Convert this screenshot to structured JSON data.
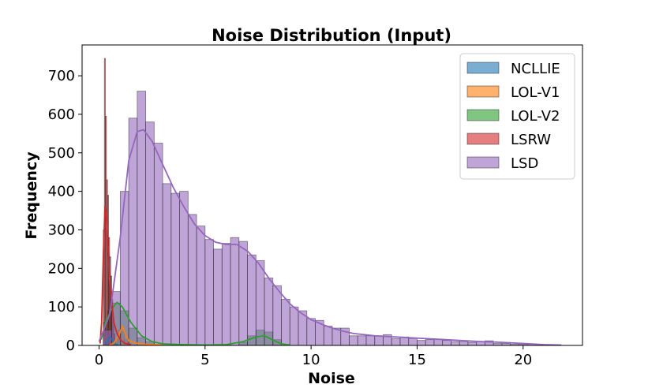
{
  "chart_data": {
    "type": "histogram",
    "title": "Noise Distribution (Input)",
    "xlabel": "Noise",
    "ylabel": "Frequency",
    "xlim": [
      -0.8,
      22.8
    ],
    "ylim": [
      0,
      780
    ],
    "xticks": [
      0,
      5,
      10,
      15,
      20
    ],
    "yticks": [
      0,
      100,
      200,
      300,
      400,
      500,
      600,
      700
    ],
    "legend_position": "top-right",
    "series": [
      {
        "name": "NCLLIE",
        "color": "#1f77b4",
        "bins": [
          [
            0.3,
            0.35,
            15
          ],
          [
            0.35,
            0.4,
            40
          ],
          [
            0.4,
            0.45,
            90
          ],
          [
            0.45,
            0.5,
            170
          ],
          [
            0.5,
            0.55,
            230
          ],
          [
            0.55,
            0.6,
            180
          ],
          [
            0.6,
            0.65,
            120
          ],
          [
            0.65,
            0.7,
            60
          ],
          [
            0.7,
            0.75,
            30
          ],
          [
            0.75,
            0.8,
            10
          ]
        ],
        "kde": [
          [
            0.3,
            3
          ],
          [
            0.4,
            12
          ],
          [
            0.5,
            22
          ],
          [
            0.6,
            18
          ],
          [
            0.7,
            8
          ],
          [
            0.8,
            3
          ],
          [
            0.9,
            1
          ]
        ]
      },
      {
        "name": "LOL-V1",
        "color": "#ff7f0e",
        "bins": [
          [
            0.6,
            0.75,
            5
          ],
          [
            0.75,
            0.9,
            15
          ],
          [
            0.9,
            1.05,
            40
          ],
          [
            1.05,
            1.2,
            35
          ],
          [
            1.2,
            1.35,
            15
          ],
          [
            1.35,
            1.5,
            5
          ]
        ],
        "kde": [
          [
            0.5,
            1
          ],
          [
            0.7,
            6
          ],
          [
            0.9,
            22
          ],
          [
            1.1,
            50
          ],
          [
            1.25,
            28
          ],
          [
            1.4,
            12
          ],
          [
            1.7,
            6
          ],
          [
            2.2,
            3
          ],
          [
            3.0,
            1
          ]
        ]
      },
      {
        "name": "LOL-V2",
        "color": "#2ca02c",
        "bins": [
          [
            0.2,
            0.6,
            60
          ],
          [
            0.6,
            1.0,
            110
          ],
          [
            1.0,
            1.4,
            90
          ],
          [
            1.4,
            1.8,
            45
          ],
          [
            1.8,
            2.2,
            20
          ],
          [
            2.2,
            2.6,
            10
          ],
          [
            6.6,
            7.0,
            8
          ],
          [
            7.0,
            7.4,
            25
          ],
          [
            7.4,
            7.8,
            40
          ],
          [
            7.8,
            8.2,
            35
          ],
          [
            8.2,
            8.6,
            15
          ]
        ],
        "kde": [
          [
            0.1,
            15
          ],
          [
            0.3,
            60
          ],
          [
            0.6,
            95
          ],
          [
            0.85,
            112
          ],
          [
            1.1,
            100
          ],
          [
            1.5,
            60
          ],
          [
            2.0,
            25
          ],
          [
            2.5,
            10
          ],
          [
            3.0,
            4
          ],
          [
            4.0,
            2
          ],
          [
            5.0,
            1
          ],
          [
            6.0,
            2
          ],
          [
            6.8,
            10
          ],
          [
            7.4,
            22
          ],
          [
            7.8,
            25
          ],
          [
            8.2,
            14
          ],
          [
            8.6,
            4
          ],
          [
            9.0,
            1
          ]
        ]
      },
      {
        "name": "LSRW",
        "color": "#d62728",
        "bins": [
          [
            0.2,
            0.25,
            300
          ],
          [
            0.25,
            0.3,
            745
          ],
          [
            0.3,
            0.35,
            595
          ],
          [
            0.35,
            0.4,
            430
          ],
          [
            0.4,
            0.45,
            390
          ],
          [
            0.45,
            0.5,
            280
          ],
          [
            0.5,
            0.55,
            180
          ],
          [
            0.55,
            0.6,
            120
          ],
          [
            0.6,
            0.65,
            80
          ],
          [
            0.65,
            0.7,
            50
          ],
          [
            0.7,
            0.75,
            30
          ]
        ],
        "kde": [
          [
            0.05,
            5
          ],
          [
            0.12,
            60
          ],
          [
            0.2,
            230
          ],
          [
            0.28,
            360
          ],
          [
            0.35,
            330
          ],
          [
            0.45,
            230
          ],
          [
            0.55,
            140
          ],
          [
            0.7,
            60
          ],
          [
            0.85,
            30
          ],
          [
            1.0,
            15
          ],
          [
            1.2,
            6
          ],
          [
            1.5,
            2
          ]
        ]
      },
      {
        "name": "LSD",
        "color": "#9467bd",
        "bins": [
          [
            0.2,
            0.6,
            40
          ],
          [
            0.6,
            1.0,
            140
          ],
          [
            1.0,
            1.4,
            400
          ],
          [
            1.4,
            1.8,
            590
          ],
          [
            1.8,
            2.2,
            660
          ],
          [
            2.2,
            2.6,
            580
          ],
          [
            2.6,
            3.0,
            525
          ],
          [
            3.0,
            3.4,
            420
          ],
          [
            3.4,
            3.8,
            395
          ],
          [
            3.8,
            4.2,
            400
          ],
          [
            4.2,
            4.6,
            340
          ],
          [
            4.6,
            5.0,
            310
          ],
          [
            5.0,
            5.4,
            275
          ],
          [
            5.4,
            5.8,
            250
          ],
          [
            5.8,
            6.2,
            265
          ],
          [
            6.2,
            6.6,
            280
          ],
          [
            6.6,
            7.0,
            270
          ],
          [
            7.0,
            7.4,
            235
          ],
          [
            7.4,
            7.8,
            220
          ],
          [
            7.8,
            8.2,
            175
          ],
          [
            8.2,
            8.6,
            155
          ],
          [
            8.6,
            9.0,
            120
          ],
          [
            9.0,
            9.4,
            100
          ],
          [
            9.4,
            9.8,
            90
          ],
          [
            9.8,
            10.2,
            70
          ],
          [
            10.2,
            10.6,
            65
          ],
          [
            10.6,
            11.0,
            50
          ],
          [
            11.0,
            11.4,
            45
          ],
          [
            11.4,
            11.8,
            45
          ],
          [
            11.8,
            12.2,
            25
          ],
          [
            12.2,
            12.6,
            25
          ],
          [
            12.6,
            13.0,
            25
          ],
          [
            13.0,
            13.4,
            25
          ],
          [
            13.4,
            13.8,
            28
          ],
          [
            13.8,
            14.2,
            18
          ],
          [
            14.2,
            14.6,
            22
          ],
          [
            14.6,
            15.0,
            18
          ],
          [
            15.0,
            15.4,
            13
          ],
          [
            15.4,
            15.8,
            15
          ],
          [
            15.8,
            16.2,
            16
          ],
          [
            16.2,
            16.6,
            13
          ],
          [
            16.6,
            17.0,
            10
          ],
          [
            17.0,
            17.4,
            10
          ],
          [
            17.4,
            17.8,
            8
          ],
          [
            17.8,
            18.2,
            10
          ],
          [
            18.2,
            18.6,
            12
          ],
          [
            18.6,
            19.0,
            5
          ],
          [
            19.0,
            19.4,
            5
          ],
          [
            19.4,
            19.8,
            3
          ],
          [
            19.8,
            20.2,
            3
          ],
          [
            20.2,
            20.6,
            3
          ],
          [
            20.6,
            21.0,
            2
          ],
          [
            21.0,
            21.4,
            2
          ],
          [
            21.4,
            21.8,
            1
          ]
        ],
        "kde": [
          [
            0.0,
            10
          ],
          [
            0.5,
            80
          ],
          [
            1.0,
            280
          ],
          [
            1.4,
            480
          ],
          [
            1.8,
            555
          ],
          [
            2.1,
            560
          ],
          [
            2.5,
            530
          ],
          [
            3.0,
            470
          ],
          [
            3.5,
            410
          ],
          [
            4.0,
            360
          ],
          [
            4.5,
            315
          ],
          [
            5.0,
            285
          ],
          [
            5.5,
            268
          ],
          [
            6.0,
            262
          ],
          [
            6.5,
            262
          ],
          [
            7.0,
            245
          ],
          [
            7.5,
            215
          ],
          [
            8.0,
            175
          ],
          [
            8.5,
            140
          ],
          [
            9.0,
            108
          ],
          [
            9.5,
            85
          ],
          [
            10.0,
            67
          ],
          [
            10.5,
            55
          ],
          [
            11.0,
            45
          ],
          [
            11.5,
            37
          ],
          [
            12.0,
            31
          ],
          [
            13.0,
            25
          ],
          [
            14.0,
            22
          ],
          [
            15.0,
            19
          ],
          [
            16.0,
            16
          ],
          [
            17.0,
            13
          ],
          [
            18.0,
            10
          ],
          [
            19.0,
            8
          ],
          [
            20.0,
            5
          ],
          [
            21.0,
            2
          ],
          [
            21.8,
            1
          ]
        ]
      }
    ]
  }
}
